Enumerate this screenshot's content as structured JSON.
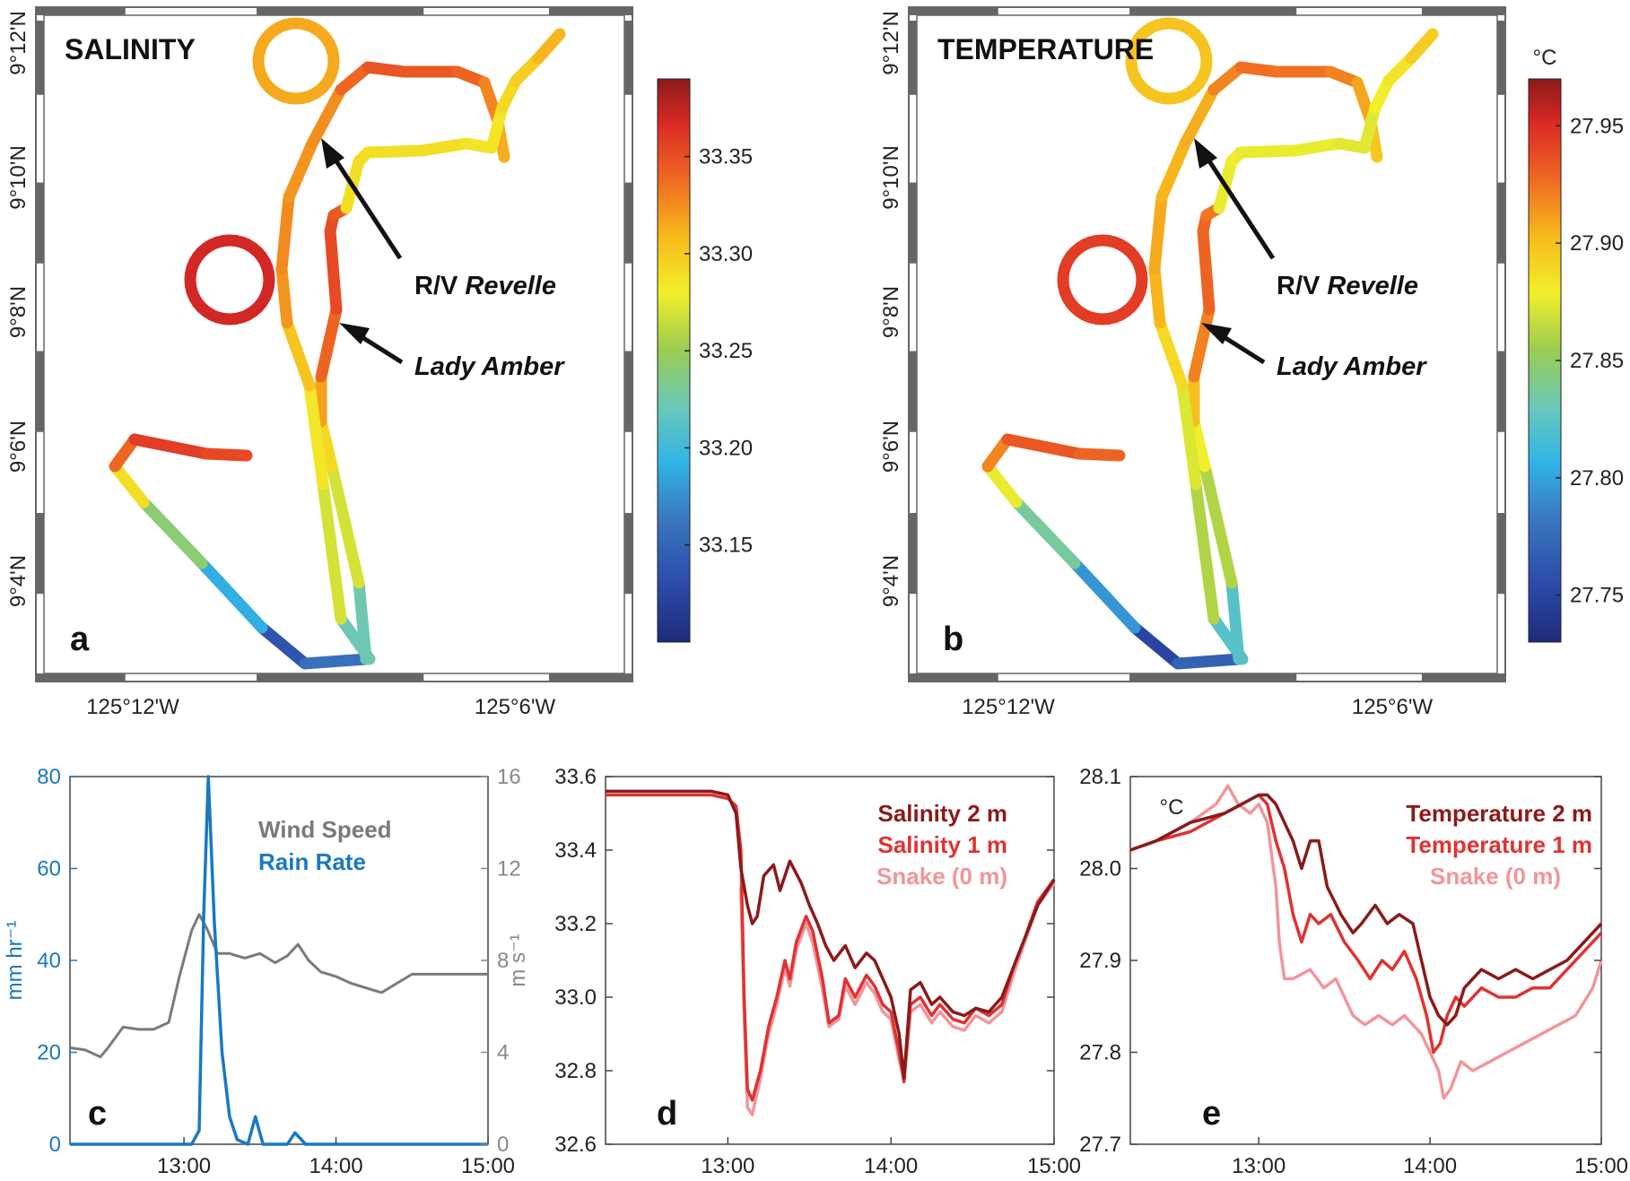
{
  "chart_data": [
    {
      "panel": "a",
      "type": "scatter",
      "title": "SALINITY",
      "colorbar": {
        "ticks": [
          33.15,
          33.2,
          33.25,
          33.3,
          33.35
        ],
        "range": [
          33.1,
          33.39
        ],
        "unit": ""
      },
      "x_ticks": [
        "125°12'W",
        "125°6'W"
      ],
      "y_ticks": [
        "9°4'N",
        "9°6'N",
        "9°8'N",
        "9°10'N",
        "9°12'N"
      ],
      "annotations": [
        {
          "prefix": "R/V ",
          "italic": "Revelle"
        },
        {
          "prefix": "",
          "italic": "Lady Amber"
        }
      ]
    },
    {
      "panel": "b",
      "type": "scatter",
      "title": "TEMPERATURE",
      "colorbar": {
        "ticks": [
          27.75,
          27.8,
          27.85,
          27.9,
          27.95
        ],
        "range": [
          27.73,
          27.97
        ],
        "unit": "°C"
      },
      "x_ticks": [
        "125°12'W",
        "125°6'W"
      ],
      "y_ticks": [
        "9°4'N",
        "9°6'N",
        "9°8'N",
        "9°10'N",
        "9°12'N"
      ],
      "annotations": [
        {
          "prefix": "R/V ",
          "italic": "Revelle"
        },
        {
          "prefix": "",
          "italic": "Lady Amber"
        }
      ]
    },
    {
      "panel": "c",
      "type": "line",
      "x_ticks": [
        "13:00",
        "14:00",
        "15:00"
      ],
      "x_range_hours": [
        12.25,
        15.0
      ],
      "y_left": {
        "label": "mm hr⁻¹",
        "ticks": [
          0,
          20,
          40,
          60,
          80
        ],
        "range": [
          0,
          80
        ],
        "color": "#1a78c2"
      },
      "y_right": {
        "label": "m s⁻¹",
        "ticks": [
          0,
          4,
          8,
          12,
          16
        ],
        "range": [
          0,
          16
        ],
        "color": "#888888"
      },
      "series": [
        {
          "name": "Wind Speed",
          "axis": "right",
          "color": "#7a7a7a",
          "x": [
            12.25,
            12.35,
            12.45,
            12.5,
            12.6,
            12.7,
            12.8,
            12.9,
            12.97,
            13.05,
            13.1,
            13.15,
            13.22,
            13.3,
            13.4,
            13.5,
            13.6,
            13.68,
            13.75,
            13.82,
            13.9,
            14.0,
            14.1,
            14.2,
            14.3,
            14.4,
            14.5,
            14.6,
            14.7,
            14.8,
            14.9,
            15.0
          ],
          "y": [
            4.2,
            4.1,
            3.8,
            4.2,
            5.1,
            5.0,
            5.0,
            5.3,
            7.3,
            9.3,
            10.0,
            9.4,
            8.3,
            8.3,
            8.1,
            8.3,
            7.9,
            8.2,
            8.7,
            8.0,
            7.5,
            7.3,
            7.0,
            6.8,
            6.6,
            7.0,
            7.4,
            7.4,
            7.4,
            7.4,
            7.4,
            7.4
          ]
        },
        {
          "name": "Rain Rate",
          "axis": "left",
          "color": "#1a78c2",
          "x": [
            12.25,
            13.0,
            13.05,
            13.1,
            13.13,
            13.16,
            13.2,
            13.25,
            13.3,
            13.35,
            13.42,
            13.47,
            13.52,
            13.6,
            13.68,
            13.73,
            13.8,
            13.9,
            15.0
          ],
          "y": [
            0,
            0,
            0,
            3,
            50,
            80,
            48,
            20,
            6,
            1,
            0,
            6,
            0,
            0,
            0,
            2.5,
            0,
            0,
            0
          ]
        }
      ],
      "legend_placement": "top-center"
    },
    {
      "panel": "d",
      "type": "line",
      "x_ticks": [
        "13:00",
        "14:00",
        "15:00"
      ],
      "x_range_hours": [
        12.25,
        15.0
      ],
      "y_ticks": [
        32.6,
        32.8,
        33.0,
        33.2,
        33.4,
        33.6
      ],
      "ylim": [
        32.6,
        33.6
      ],
      "series": [
        {
          "name": "Salinity 2 m",
          "color": "#8b1a1a",
          "x": [
            12.25,
            12.6,
            12.9,
            13.0,
            13.05,
            13.08,
            13.12,
            13.15,
            13.18,
            13.22,
            13.28,
            13.32,
            13.38,
            13.45,
            13.5,
            13.55,
            13.6,
            13.65,
            13.72,
            13.78,
            13.85,
            13.9,
            13.95,
            14.0,
            14.05,
            14.08,
            14.12,
            14.18,
            14.25,
            14.3,
            14.38,
            14.45,
            14.52,
            14.6,
            14.68,
            14.75,
            14.82,
            14.9,
            15.0
          ],
          "y": [
            33.56,
            33.56,
            33.56,
            33.55,
            33.5,
            33.35,
            33.25,
            33.2,
            33.22,
            33.33,
            33.36,
            33.29,
            33.37,
            33.31,
            33.25,
            33.2,
            33.14,
            33.1,
            33.14,
            33.08,
            33.12,
            33.1,
            33.05,
            33.0,
            32.9,
            32.78,
            33.02,
            33.04,
            32.98,
            33.0,
            32.96,
            32.95,
            32.97,
            32.96,
            33.0,
            33.08,
            33.16,
            33.25,
            33.32
          ]
        },
        {
          "name": "Salinity 1 m",
          "color": "#e03232",
          "x": [
            12.25,
            12.6,
            12.9,
            13.0,
            13.05,
            13.08,
            13.1,
            13.12,
            13.15,
            13.2,
            13.25,
            13.3,
            13.35,
            13.38,
            13.42,
            13.48,
            13.52,
            13.58,
            13.62,
            13.68,
            13.72,
            13.78,
            13.85,
            13.9,
            13.95,
            14.0,
            14.05,
            14.08,
            14.12,
            14.18,
            14.25,
            14.3,
            14.38,
            14.45,
            14.52,
            14.6,
            14.68,
            14.75,
            14.82,
            14.9,
            15.0
          ],
          "y": [
            33.55,
            33.55,
            33.55,
            33.54,
            33.52,
            33.4,
            33.0,
            32.75,
            32.72,
            32.8,
            32.92,
            33.0,
            33.1,
            33.05,
            33.15,
            33.22,
            33.18,
            33.05,
            32.93,
            32.95,
            33.05,
            33.0,
            33.06,
            33.03,
            32.98,
            32.96,
            32.85,
            32.77,
            32.98,
            33.0,
            32.95,
            32.98,
            32.94,
            32.93,
            32.97,
            32.95,
            32.98,
            33.08,
            33.16,
            33.26,
            33.32
          ]
        },
        {
          "name": "Snake (0 m)",
          "color": "#f2959a",
          "x": [
            13.08,
            13.1,
            13.12,
            13.15,
            13.2,
            13.25,
            13.3,
            13.35,
            13.38,
            13.42,
            13.48,
            13.52,
            13.58,
            13.62,
            13.68,
            13.72,
            13.78,
            13.85,
            13.9,
            13.95,
            14.0,
            14.05,
            14.08,
            14.12,
            14.18,
            14.25,
            14.3,
            14.38,
            14.45,
            14.52,
            14.6,
            14.68,
            14.75,
            14.82,
            14.9,
            15.0
          ],
          "y": [
            33.3,
            32.95,
            32.7,
            32.68,
            32.78,
            32.9,
            32.98,
            33.08,
            33.03,
            33.13,
            33.2,
            33.15,
            33.02,
            32.92,
            32.94,
            33.03,
            32.98,
            33.04,
            33.01,
            32.96,
            32.94,
            32.83,
            32.78,
            32.96,
            32.98,
            32.93,
            32.96,
            32.92,
            32.91,
            32.95,
            32.93,
            32.96,
            33.06,
            33.15,
            33.25,
            33.31
          ]
        }
      ],
      "legend_placement": "top-right"
    },
    {
      "panel": "e",
      "type": "line",
      "x_ticks": [
        "13:00",
        "14:00",
        "15:00"
      ],
      "x_range_hours": [
        12.25,
        15.0
      ],
      "y_label": "°C",
      "y_ticks": [
        27.7,
        27.8,
        27.9,
        28.0,
        28.1
      ],
      "ylim": [
        27.7,
        28.1
      ],
      "series": [
        {
          "name": "Temperature 2 m",
          "color": "#8b1a1a",
          "x": [
            12.25,
            12.4,
            12.6,
            12.8,
            12.9,
            13.0,
            13.05,
            13.1,
            13.15,
            13.2,
            13.25,
            13.3,
            13.35,
            13.4,
            13.48,
            13.55,
            13.6,
            13.68,
            13.75,
            13.82,
            13.9,
            13.95,
            14.0,
            14.05,
            14.1,
            14.15,
            14.2,
            14.3,
            14.4,
            14.5,
            14.6,
            14.7,
            14.8,
            14.9,
            15.0
          ],
          "y": [
            28.02,
            28.03,
            28.05,
            28.06,
            28.07,
            28.08,
            28.08,
            28.07,
            28.05,
            28.03,
            28.0,
            28.03,
            28.03,
            27.98,
            27.95,
            27.93,
            27.94,
            27.96,
            27.94,
            27.95,
            27.94,
            27.9,
            27.86,
            27.84,
            27.83,
            27.84,
            27.87,
            27.89,
            27.88,
            27.89,
            27.88,
            27.89,
            27.9,
            27.92,
            27.94
          ]
        },
        {
          "name": "Temperature 1 m",
          "color": "#e03232",
          "x": [
            12.25,
            12.4,
            12.6,
            12.8,
            12.9,
            13.0,
            13.05,
            13.1,
            13.15,
            13.2,
            13.25,
            13.3,
            13.35,
            13.42,
            13.5,
            13.58,
            13.65,
            13.72,
            13.78,
            13.85,
            13.92,
            13.98,
            14.02,
            14.06,
            14.1,
            14.15,
            14.2,
            14.3,
            14.4,
            14.5,
            14.6,
            14.7,
            14.8,
            14.9,
            15.0
          ],
          "y": [
            28.02,
            28.03,
            28.04,
            28.06,
            28.07,
            28.08,
            28.07,
            28.03,
            28.0,
            27.95,
            27.92,
            27.95,
            27.94,
            27.95,
            27.92,
            27.9,
            27.88,
            27.9,
            27.89,
            27.91,
            27.88,
            27.84,
            27.8,
            27.81,
            27.84,
            27.86,
            27.85,
            27.87,
            27.86,
            27.86,
            27.87,
            27.87,
            27.89,
            27.91,
            27.93
          ]
        },
        {
          "name": "Snake (0 m)",
          "color": "#f2959a",
          "x": [
            12.25,
            12.4,
            12.6,
            12.75,
            12.82,
            12.88,
            12.95,
            13.0,
            13.05,
            13.1,
            13.12,
            13.15,
            13.2,
            13.3,
            13.38,
            13.45,
            13.55,
            13.62,
            13.7,
            13.78,
            13.85,
            13.9,
            13.95,
            14.0,
            14.05,
            14.08,
            14.12,
            14.18,
            14.25,
            14.35,
            14.45,
            14.55,
            14.65,
            14.75,
            14.85,
            14.95,
            15.0
          ],
          "y": [
            28.02,
            28.03,
            28.05,
            28.07,
            28.09,
            28.07,
            28.06,
            28.07,
            28.05,
            27.98,
            27.92,
            27.88,
            27.88,
            27.89,
            27.87,
            27.88,
            27.84,
            27.83,
            27.84,
            27.83,
            27.84,
            27.83,
            27.82,
            27.8,
            27.78,
            27.75,
            27.76,
            27.79,
            27.78,
            27.79,
            27.8,
            27.81,
            27.82,
            27.83,
            27.84,
            27.87,
            27.9
          ]
        }
      ],
      "legend_placement": "top-right"
    }
  ]
}
